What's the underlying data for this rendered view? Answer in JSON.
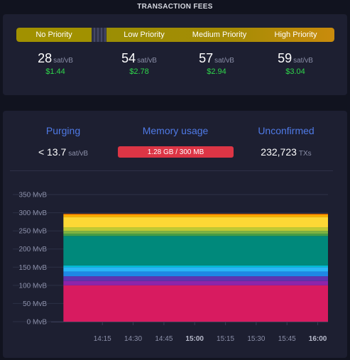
{
  "header": {
    "title": "TRANSACTION FEES"
  },
  "fees": {
    "bar": {
      "no_priority": "No Priority",
      "low": "Low Priority",
      "medium": "Medium Priority",
      "high": "High Priority"
    },
    "unit": "sat/vB",
    "columns": [
      {
        "value": "28",
        "usd": "$1.44"
      },
      {
        "value": "54",
        "usd": "$2.78"
      },
      {
        "value": "57",
        "usd": "$2.94"
      },
      {
        "value": "59",
        "usd": "$3.04"
      }
    ]
  },
  "mempool": {
    "purging": {
      "label": "Purging",
      "value": "< 13.7",
      "unit": "sat/vB"
    },
    "memory": {
      "label": "Memory usage",
      "value": "1.28 GB / 300 MB"
    },
    "unconfirmed": {
      "label": "Unconfirmed",
      "value": "232,723",
      "unit": "TXs"
    }
  },
  "chart_data": {
    "type": "area",
    "stacked": true,
    "y_ticks": [
      "0 MvB",
      "50 MvB",
      "100 MvB",
      "150 MvB",
      "200 MvB",
      "250 MvB",
      "300 MvB",
      "350 MvB"
    ],
    "ylim": [
      0,
      350
    ],
    "x_ticks": [
      {
        "label": "14:15",
        "bold": false
      },
      {
        "label": "14:30",
        "bold": false
      },
      {
        "label": "14:45",
        "bold": false
      },
      {
        "label": "15:00",
        "bold": true
      },
      {
        "label": "15:15",
        "bold": false
      },
      {
        "label": "15:30",
        "bold": false
      },
      {
        "label": "15:45",
        "bold": false
      },
      {
        "label": "16:00",
        "bold": true
      }
    ],
    "xlim_minutes": [
      830,
      965
    ],
    "data_start_minutes": 836,
    "grid": true,
    "layers": [
      {
        "color": "#d81b60",
        "bottom": 0,
        "top": 100
      },
      {
        "color": "#8e24aa",
        "bottom": 100,
        "top": 112
      },
      {
        "color": "#5e35b1",
        "bottom": 112,
        "top": 125
      },
      {
        "color": "#1e88e5",
        "bottom": 125,
        "top": 138
      },
      {
        "color": "#29b6f6",
        "bottom": 138,
        "top": 150
      },
      {
        "color": "#00bcd4",
        "bottom": 150,
        "top": 155
      },
      {
        "color": "#00897b",
        "bottom": 155,
        "top": 236
      },
      {
        "color": "#43a047",
        "bottom": 236,
        "top": 242
      },
      {
        "color": "#7cb342",
        "bottom": 242,
        "top": 250
      },
      {
        "color": "#c0ca33",
        "bottom": 250,
        "top": 260
      },
      {
        "color": "#fdd835",
        "bottom": 260,
        "top": 288
      },
      {
        "color": "#ffb300",
        "bottom": 288,
        "top": 294
      },
      {
        "color": "#f57c00",
        "bottom": 294,
        "top": 297
      }
    ]
  }
}
